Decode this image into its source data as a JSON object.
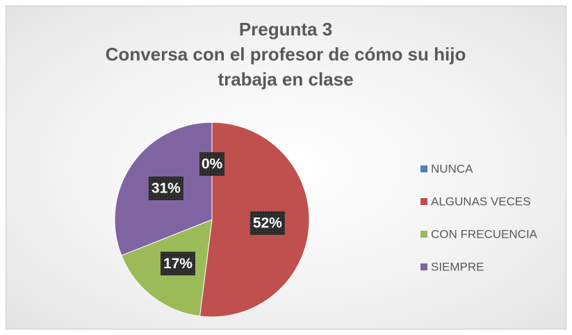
{
  "chart_data": {
    "type": "pie",
    "title": [
      "Pregunta 3",
      "Conversa con el profesor de cómo su hijo trabaja en clase"
    ],
    "categories": [
      "NUNCA",
      "ALGUNAS VECES",
      "CON FRECUENCIA",
      "SIEMPRE"
    ],
    "values": [
      0,
      52,
      17,
      31
    ],
    "value_labels": [
      "0%",
      "52%",
      "17%",
      "31%"
    ],
    "colors": [
      "#4f81bd",
      "#c0504d",
      "#9bbb59",
      "#8064a2"
    ],
    "legend": "right"
  }
}
